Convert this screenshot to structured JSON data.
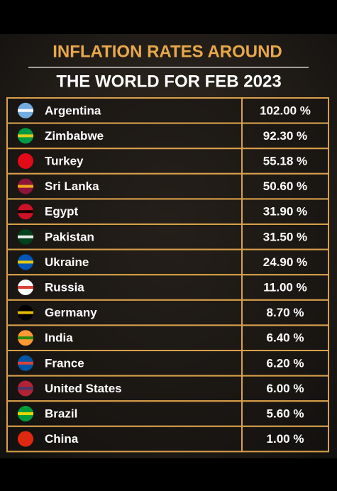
{
  "header": {
    "title_line1": "INFLATION RATES AROUND",
    "title_line2": "THE WORLD FOR FEB 2023"
  },
  "table": {
    "rows": [
      [
        "Argentina",
        "102.00 %"
      ],
      [
        "Zimbabwe",
        "92.30 %"
      ],
      [
        "Turkey",
        "55.18 %"
      ],
      [
        "Sri Lanka",
        "50.60 %"
      ],
      [
        "Egypt",
        "31.90 %"
      ],
      [
        "Pakistan",
        "31.50 %"
      ],
      [
        "Ukraine",
        "24.90 %"
      ],
      [
        "Russia",
        "11.00 %"
      ],
      [
        "Germany",
        "8.70 %"
      ],
      [
        "India",
        "6.40 %"
      ],
      [
        "France",
        "6.20 %"
      ],
      [
        "United States",
        "6.00 %"
      ],
      [
        "Brazil",
        "5.60 %"
      ],
      [
        "China",
        "1.00 %"
      ]
    ]
  }
}
